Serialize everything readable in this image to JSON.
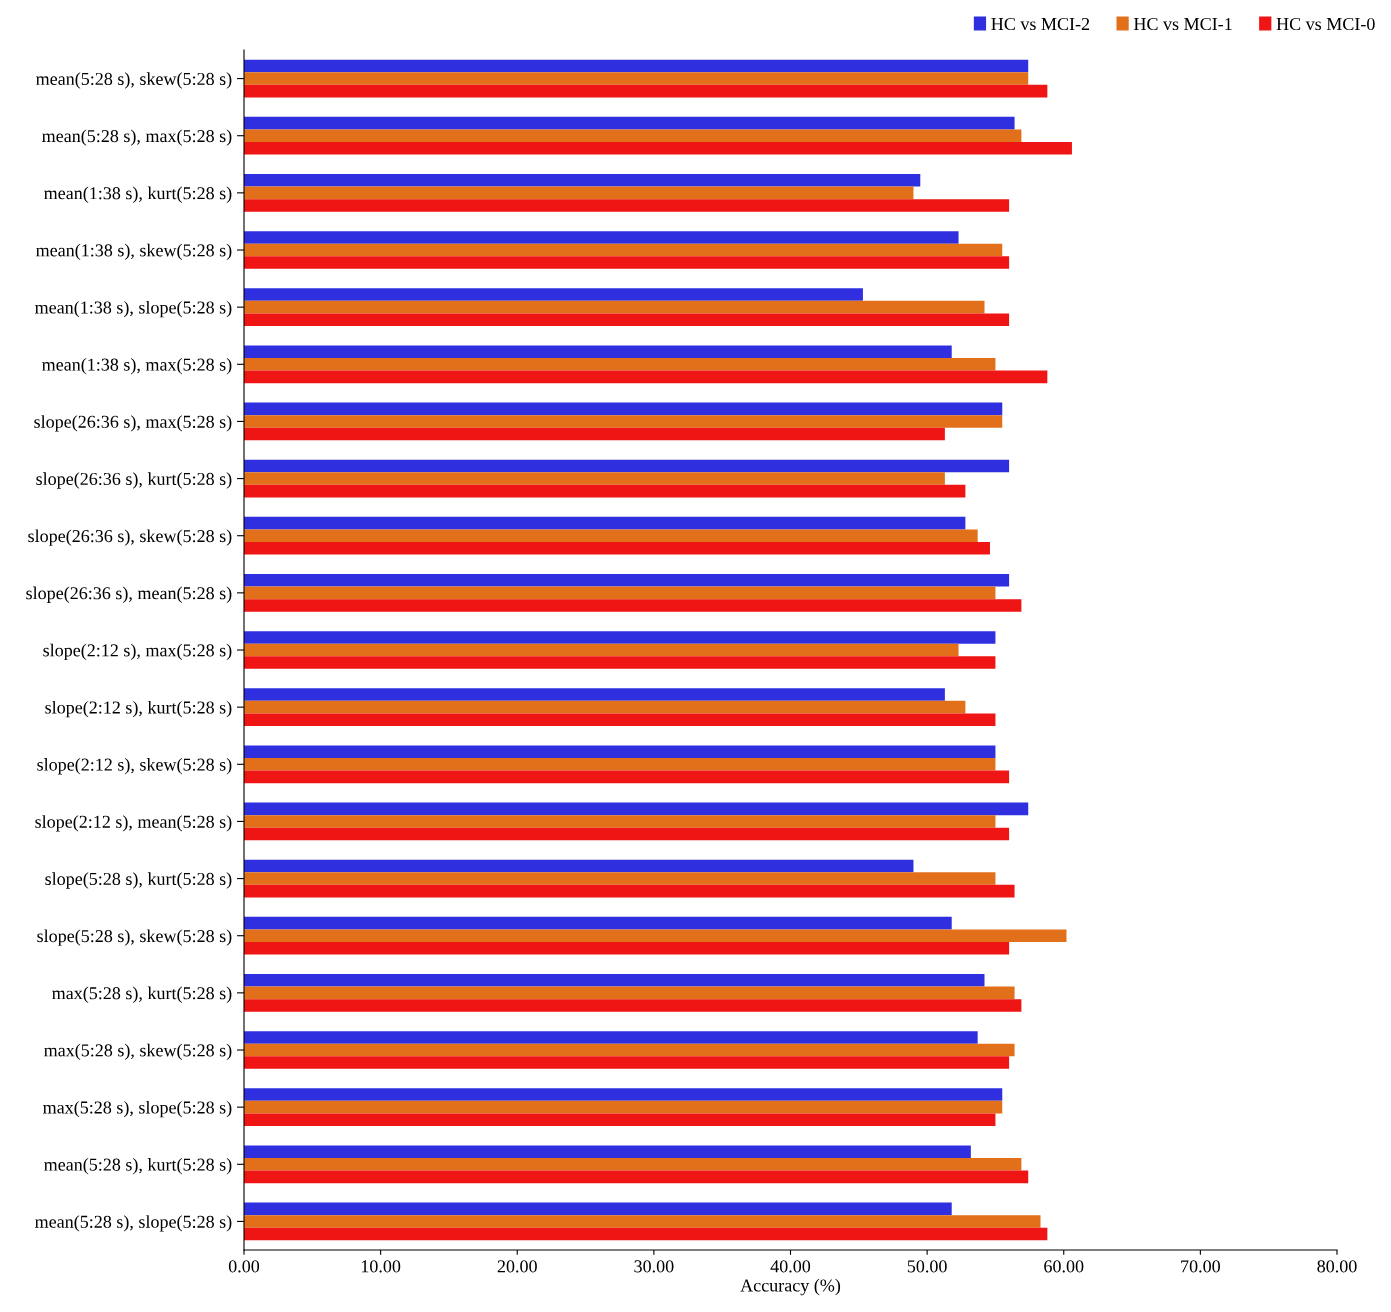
{
  "chart_data": {
    "type": "bar",
    "orientation": "horizontal",
    "xlabel": "Accuracy (%)",
    "categories": [
      "mean(5:28 s), skew(5:28 s)",
      "mean(5:28 s), max(5:28 s)",
      "mean(1:38 s), kurt(5:28 s)",
      "mean(1:38 s), skew(5:28 s)",
      "mean(1:38 s), slope(5:28 s)",
      "mean(1:38 s), max(5:28 s)",
      "slope(26:36 s), max(5:28 s)",
      "slope(26:36 s), kurt(5:28 s)",
      "slope(26:36 s), skew(5:28 s)",
      "slope(26:36 s), mean(5:28 s)",
      "slope(2:12 s), max(5:28 s)",
      "slope(2:12 s), kurt(5:28 s)",
      "slope(2:12 s), skew(5:28 s)",
      "slope(2:12 s), mean(5:28 s)",
      "slope(5:28 s), kurt(5:28 s)",
      "slope(5:28 s), skew(5:28 s)",
      "max(5:28 s), kurt(5:28 s)",
      "max(5:28 s), skew(5:28 s)",
      "max(5:28 s), slope(5:28 s)",
      "mean(5:28 s), kurt(5:28 s)",
      "mean(5:28 s), slope(5:28 s)"
    ],
    "series": [
      {
        "name": "HC vs MCI-2",
        "color": "#2f2fe0",
        "values": [
          57.4,
          56.4,
          49.5,
          52.3,
          45.3,
          51.8,
          55.5,
          56.0,
          52.8,
          56.0,
          55.0,
          51.3,
          55.0,
          57.4,
          49.0,
          51.8,
          54.2,
          53.7,
          55.5,
          53.2,
          51.8
        ]
      },
      {
        "name": "HC vs MCI-1",
        "color": "#e2701a",
        "values": [
          57.4,
          56.9,
          49.0,
          55.5,
          54.2,
          55.0,
          55.5,
          51.3,
          53.7,
          55.0,
          52.3,
          52.8,
          55.0,
          55.0,
          55.0,
          60.2,
          56.4,
          56.4,
          55.5,
          56.9,
          58.3
        ]
      },
      {
        "name": "HC vs MCI-0",
        "color": "#f01515",
        "values": [
          58.8,
          60.6,
          56.0,
          56.0,
          56.0,
          58.8,
          51.3,
          52.8,
          54.6,
          56.9,
          55.0,
          55.0,
          56.0,
          56.0,
          56.4,
          56.0,
          56.9,
          56.0,
          55.0,
          57.4,
          58.8
        ]
      }
    ],
    "xlim": [
      0,
      80
    ],
    "xticks": [
      {
        "value": 0,
        "label": "0.00"
      },
      {
        "value": 10,
        "label": "10.00"
      },
      {
        "value": 20,
        "label": "20.00"
      },
      {
        "value": 30,
        "label": "30.00"
      },
      {
        "value": 40,
        "label": "40.00"
      },
      {
        "value": 50,
        "label": "50.00"
      },
      {
        "value": 60,
        "label": "60.00"
      },
      {
        "value": 70,
        "label": "70.00"
      },
      {
        "value": 80,
        "label": "80.00"
      }
    ],
    "grid": false,
    "legend": "top right"
  }
}
